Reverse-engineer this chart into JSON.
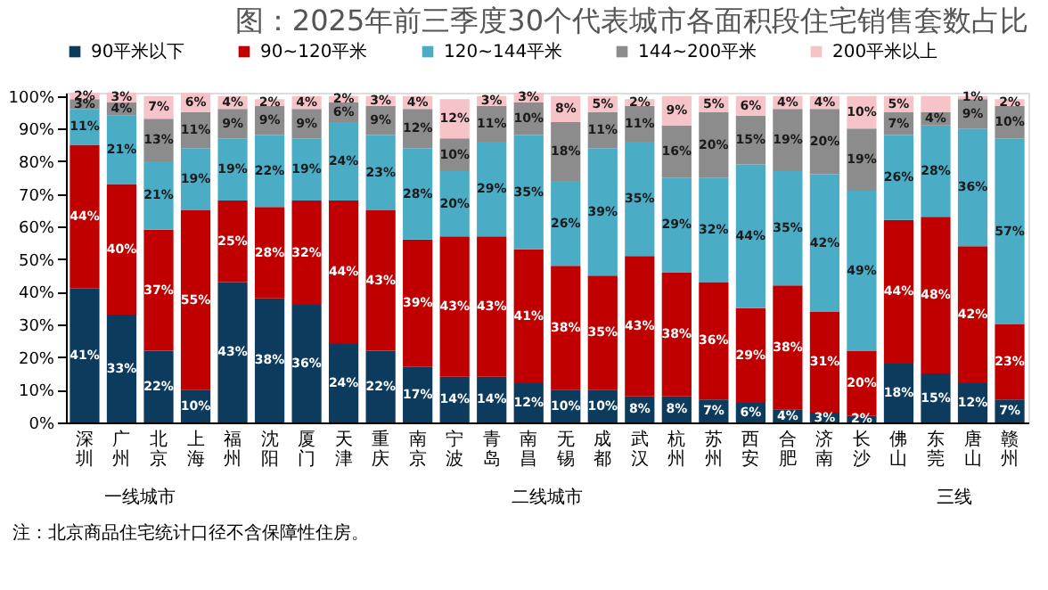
{
  "chart_data": {
    "type": "bar",
    "stacked": true,
    "title": "图：2025年前三季度30个代表城市各面积段住宅销售套数占比",
    "categories": [
      "深圳",
      "广州",
      "北京",
      "上海",
      "福州",
      "沈阳",
      "厦门",
      "天津",
      "重庆",
      "南京",
      "宁波",
      "青岛",
      "南昌",
      "无锡",
      "成都",
      "武汉",
      "杭州",
      "苏州",
      "西安",
      "合肥",
      "济南",
      "长沙",
      "佛山",
      "东莞",
      "唐山",
      "赣州"
    ],
    "series": [
      {
        "name": "90平米以下",
        "color": "#0d3b5e",
        "values": [
          41,
          33,
          22,
          10,
          43,
          38,
          36,
          24,
          22,
          17,
          14,
          14,
          12,
          10,
          10,
          8,
          8,
          7,
          6,
          4,
          3,
          2,
          18,
          15,
          12,
          7
        ],
        "value_labels": [
          "41%",
          "33%",
          "22%",
          "10%",
          "43%",
          "38%",
          "36%",
          "24%",
          "22%",
          "17%",
          "14%",
          "14%",
          "12%",
          "10%",
          "10%",
          "8%",
          "8%",
          "7%",
          "6%",
          "4%",
          "3%",
          "2%",
          "18%",
          "15%",
          "12%",
          "7%"
        ]
      },
      {
        "name": "90~120平米",
        "color": "#c00000",
        "values": [
          44,
          40,
          37,
          55,
          25,
          28,
          32,
          44,
          43,
          39,
          43,
          43,
          41,
          38,
          35,
          43,
          38,
          36,
          29,
          38,
          31,
          20,
          44,
          48,
          42,
          23
        ],
        "value_labels": [
          "44%",
          "40%",
          "37%",
          "55%",
          "25%",
          "28%",
          "32%",
          "44%",
          "43%",
          "39%",
          "43%",
          "43%",
          "41%",
          "38%",
          "35%",
          "43%",
          "38%",
          "36%",
          "29%",
          "38%",
          "31%",
          "20%",
          "44%",
          "48%",
          "42%",
          "23%"
        ]
      },
      {
        "name": "120~144平米",
        "color": "#4bacc6",
        "values": [
          11,
          21,
          21,
          19,
          19,
          22,
          19,
          24,
          23,
          28,
          20,
          29,
          35,
          26,
          39,
          35,
          29,
          32,
          44,
          35,
          42,
          49,
          26,
          28,
          36,
          57
        ],
        "value_labels": [
          "11%",
          "21%",
          "21%",
          "19%",
          "19%",
          "22%",
          "19%",
          "24%",
          "23%",
          "28%",
          "20%",
          "29%",
          "35%",
          "26%",
          "39%",
          "35%",
          "29%",
          "32%",
          "44%",
          "35%",
          "42%",
          "49%",
          "26%",
          "28%",
          "36%",
          "57%"
        ]
      },
      {
        "name": "144~200平米",
        "color": "#8c8c8c",
        "values": [
          3,
          4,
          13,
          11,
          9,
          9,
          9,
          6,
          9,
          12,
          10,
          11,
          10,
          18,
          11,
          11,
          16,
          20,
          15,
          19,
          20,
          19,
          7,
          4,
          9,
          10
        ],
        "value_labels": [
          "3%",
          "4%",
          "13%",
          "11%",
          "9%",
          "9%",
          "9%",
          "6%",
          "9%",
          "12%",
          "10%",
          "11%",
          "10%",
          "18%",
          "11%",
          "11%",
          "16%",
          "20%",
          "15%",
          "19%",
          "20%",
          "19%",
          "7%",
          "4%",
          "9%",
          "10%"
        ]
      },
      {
        "name": "200平米以上",
        "color": "#f6c3c9",
        "values": [
          2,
          3,
          7,
          6,
          4,
          2,
          4,
          2,
          3,
          4,
          12,
          3,
          3,
          8,
          5,
          2,
          9,
          5,
          6,
          4,
          4,
          10,
          5,
          5,
          1,
          2
        ],
        "value_labels": [
          "2%",
          "3%",
          "7%",
          "6%",
          "4%",
          "2%",
          "4%",
          "2%",
          "3%",
          "4%",
          "12%",
          "3%",
          "3%",
          "8%",
          "5%",
          "2%",
          "9%",
          "5%",
          "6%",
          "4%",
          "4%",
          "10%",
          "5%",
          null,
          "1%",
          "2%"
        ]
      }
    ],
    "ylim": [
      0,
      101
    ],
    "yticks": [
      {
        "value": 0,
        "label": "0%"
      },
      {
        "value": 10,
        "label": "10%"
      },
      {
        "value": 20,
        "label": "20%"
      },
      {
        "value": 30,
        "label": "30%"
      },
      {
        "value": 40,
        "label": "40%"
      },
      {
        "value": 50,
        "label": "50%"
      },
      {
        "value": 60,
        "label": "60%"
      },
      {
        "value": 70,
        "label": "70%"
      },
      {
        "value": 80,
        "label": "80%"
      },
      {
        "value": 90,
        "label": "90%"
      },
      {
        "value": 100,
        "label": "100%"
      }
    ],
    "legend": "top",
    "grid": false,
    "annotations": [
      "一线城市",
      "二线城市",
      "三线",
      "注：北京商品住宅统计口径不含保障性住房。"
    ]
  }
}
